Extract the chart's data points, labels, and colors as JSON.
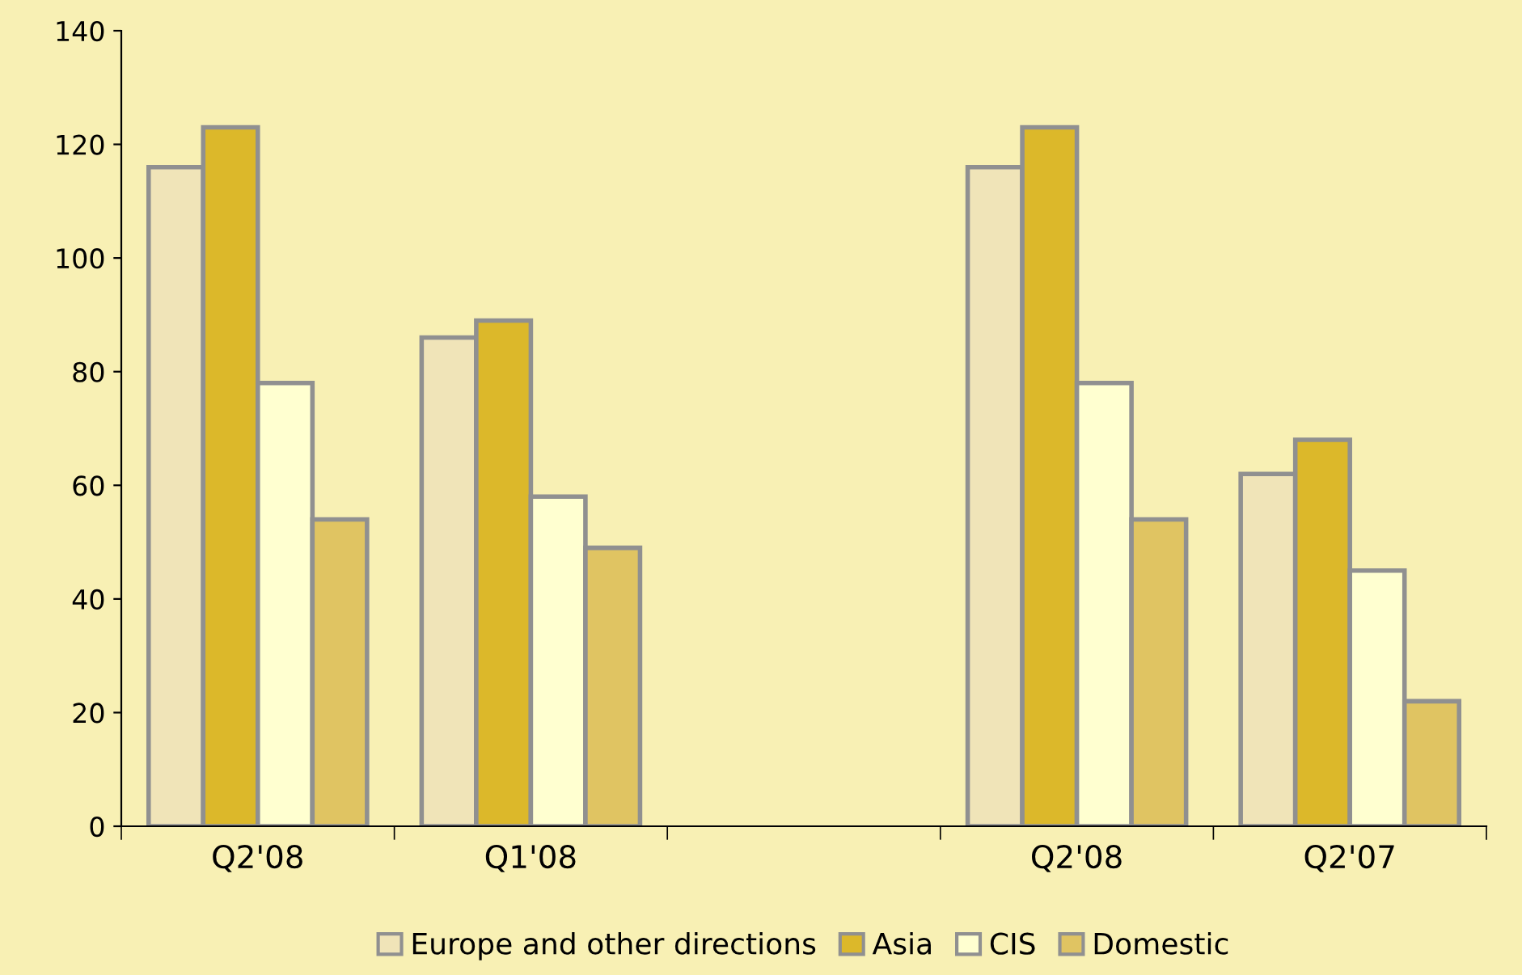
{
  "chart_data": {
    "type": "bar",
    "categories": [
      "Q2'08",
      "Q1'08",
      null,
      "Q2'08",
      "Q2'07"
    ],
    "series": [
      {
        "name": "Europe and other directions",
        "color": "#f0e4b8",
        "values": [
          116,
          86,
          null,
          116,
          62
        ]
      },
      {
        "name": "Asia",
        "color": "#dcb82a",
        "values": [
          123,
          89,
          null,
          123,
          68
        ]
      },
      {
        "name": "CIS",
        "color": "#ffffd0",
        "values": [
          78,
          58,
          null,
          78,
          45
        ]
      },
      {
        "name": "Domestic",
        "color": "#e0c462",
        "values": [
          54,
          49,
          null,
          54,
          22
        ]
      }
    ],
    "ylim": [
      0,
      140
    ],
    "yticks": [
      0,
      20,
      40,
      60,
      80,
      100,
      120,
      140
    ],
    "grid": false,
    "legend": "bottom"
  }
}
